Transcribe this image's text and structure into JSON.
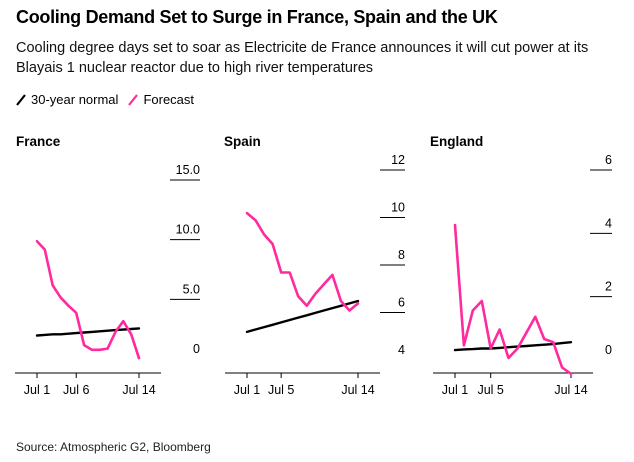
{
  "title": "Cooling Demand Set to Surge in France, Spain and the UK",
  "subtitle": "Cooling degree days set to soar as Electricite de France announces it will cut power at its Blayais 1 nuclear reactor due to high river temperatures",
  "legend": {
    "normal": "30-year normal",
    "forecast": "Forecast"
  },
  "source": "Source: Atmospheric G2, Bloomberg",
  "colors": {
    "normal": "#000000",
    "forecast": "#ff2a9d",
    "axis": "#000000"
  },
  "chart_data": [
    {
      "type": "line",
      "title": "France",
      "x": [
        "Jul 1",
        "Jul 2",
        "Jul 3",
        "Jul 4",
        "Jul 5",
        "Jul 6",
        "Jul 7",
        "Jul 8",
        "Jul 9",
        "Jul 10",
        "Jul 11",
        "Jul 12",
        "Jul 13",
        "Jul 14"
      ],
      "xtick_labels": [
        "Jul 1",
        "Jul 6",
        "Jul 14"
      ],
      "xtick_index": [
        0,
        5,
        13
      ],
      "ylim": [
        0,
        15
      ],
      "yticks": [
        0,
        5.0,
        10.0,
        15.0
      ],
      "ytick_labels": [
        "0",
        "5.0",
        "10.0",
        "15.0"
      ],
      "series": [
        {
          "name": "30-year normal",
          "values": [
            1.8,
            1.85,
            1.9,
            1.9,
            1.95,
            2.0,
            2.05,
            2.1,
            2.15,
            2.2,
            2.25,
            2.3,
            2.35,
            2.4
          ]
        },
        {
          "name": "Forecast",
          "values": [
            9.7,
            9.0,
            6.0,
            5.0,
            4.3,
            3.7,
            1.0,
            0.6,
            0.6,
            0.7,
            2.1,
            3.0,
            1.9,
            -0.1
          ]
        }
      ]
    },
    {
      "type": "line",
      "title": "Spain",
      "x": [
        "Jul 1",
        "Jul 2",
        "Jul 3",
        "Jul 4",
        "Jul 5",
        "Jul 6",
        "Jul 7",
        "Jul 8",
        "Jul 9",
        "Jul 10",
        "Jul 11",
        "Jul 12",
        "Jul 13",
        "Jul 14"
      ],
      "xtick_labels": [
        "Jul 1",
        "Jul 5",
        "Jul 14"
      ],
      "xtick_index": [
        0,
        4,
        13
      ],
      "ylim": [
        4,
        12
      ],
      "yticks": [
        4,
        6,
        8,
        10,
        12
      ],
      "ytick_labels": [
        "4",
        "6",
        "8",
        "10",
        "12"
      ],
      "series": [
        {
          "name": "30-year normal",
          "values": [
            5.1,
            5.2,
            5.3,
            5.4,
            5.5,
            5.6,
            5.7,
            5.8,
            5.9,
            6.0,
            6.1,
            6.2,
            6.3,
            6.4
          ]
        },
        {
          "name": "Forecast",
          "values": [
            10.1,
            9.8,
            9.2,
            8.8,
            7.6,
            7.6,
            6.6,
            6.2,
            6.7,
            7.1,
            7.5,
            6.4,
            6.0,
            6.3
          ]
        }
      ]
    },
    {
      "type": "line",
      "title": "England",
      "x": [
        "Jul 1",
        "Jul 2",
        "Jul 3",
        "Jul 4",
        "Jul 5",
        "Jul 6",
        "Jul 7",
        "Jul 8",
        "Jul 9",
        "Jul 10",
        "Jul 11",
        "Jul 12",
        "Jul 13",
        "Jul 14"
      ],
      "xtick_labels": [
        "Jul 1",
        "Jul 5",
        "Jul 14"
      ],
      "xtick_index": [
        0,
        4,
        13
      ],
      "ylim": [
        0,
        6
      ],
      "yticks": [
        0,
        2,
        4,
        6
      ],
      "ytick_labels": [
        "0",
        "2",
        "4",
        "6"
      ],
      "series": [
        {
          "name": "30-year normal",
          "values": [
            0.25,
            0.27,
            0.28,
            0.3,
            0.3,
            0.32,
            0.34,
            0.36,
            0.38,
            0.4,
            0.42,
            0.44,
            0.47,
            0.5
          ]
        },
        {
          "name": "Forecast",
          "values": [
            4.2,
            0.4,
            1.5,
            1.8,
            0.3,
            0.9,
            0.0,
            0.3,
            0.8,
            1.3,
            0.6,
            0.5,
            -0.3,
            -0.5
          ]
        }
      ]
    }
  ]
}
